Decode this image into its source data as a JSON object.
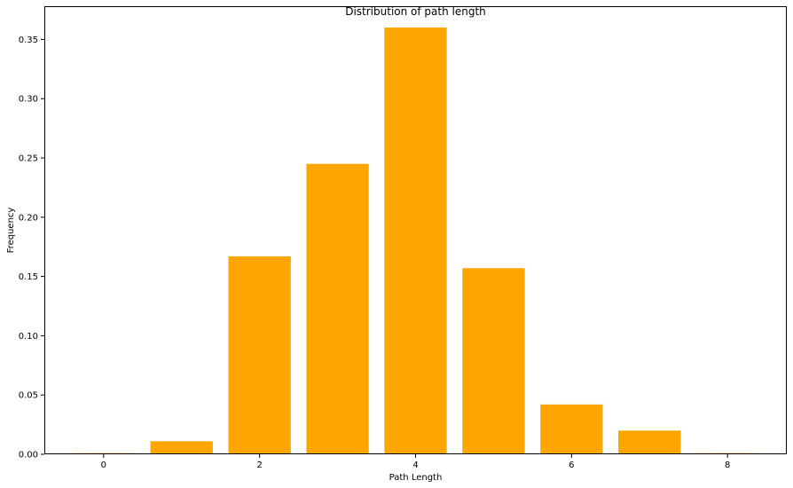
{
  "chart_data": {
    "type": "bar",
    "title": "Distribution of path length",
    "xlabel": "Path Length",
    "ylabel": "Frequency",
    "x": [
      0,
      1,
      2,
      3,
      4,
      5,
      6,
      7,
      8
    ],
    "values": [
      0.001,
      0.011,
      0.167,
      0.245,
      0.36,
      0.157,
      0.042,
      0.02,
      0.001
    ],
    "xlim": [
      -0.76,
      8.76
    ],
    "ylim": [
      0,
      0.378
    ],
    "x_ticks": [
      0,
      2,
      4,
      6,
      8
    ],
    "x_tick_labels": [
      "0",
      "2",
      "4",
      "6",
      "8"
    ],
    "y_ticks": [
      0,
      0.05,
      0.1,
      0.15,
      0.2,
      0.25,
      0.3,
      0.35
    ],
    "y_tick_labels": [
      "0.00",
      "0.05",
      "0.10",
      "0.15",
      "0.20",
      "0.25",
      "0.30",
      "0.35"
    ],
    "bar_color": "#FFA500",
    "grid": false,
    "legend": "none"
  }
}
